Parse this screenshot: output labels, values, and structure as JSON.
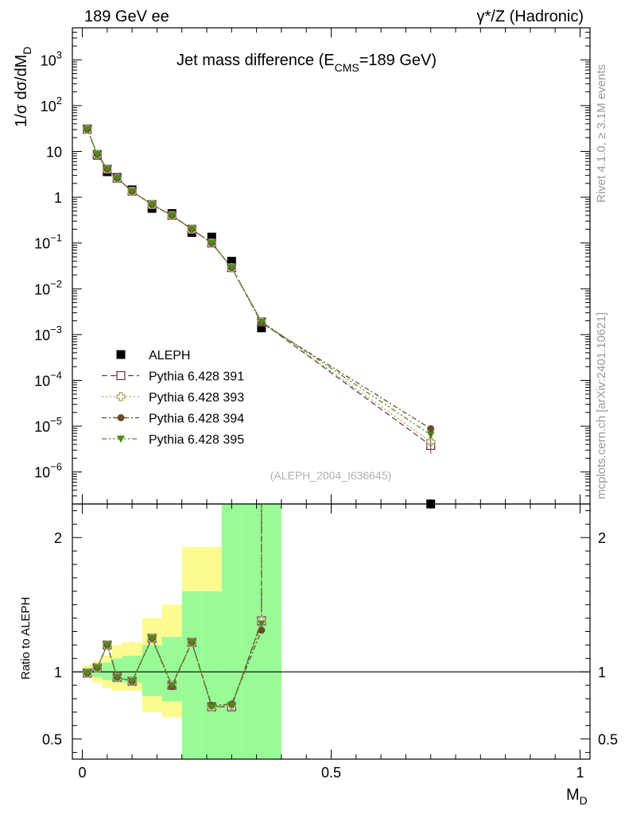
{
  "header": {
    "left": "189 GeV ee",
    "right": "γ*/Z (Hadronic)"
  },
  "side_text": {
    "rivet": "Rivet 4.1.0, ≥ 3.1M events",
    "mcplots": "mcplots.cern.ch [arXiv:2401.10621]"
  },
  "chart_data": [
    {
      "type": "scatter",
      "title": "Jet mass difference (E",
      "title_sub": "CMS",
      "title_end": "=189 GeV)",
      "ylabel": "1/σ dσ/dM",
      "ylabel_sub": "D",
      "yscale": "log",
      "ylim": [
        2e-07,
        5000
      ],
      "xlim": [
        -0.02,
        1.02
      ],
      "watermark": "(ALEPH_2004_I636645)",
      "ytick_labels": [
        {
          "v": 1000,
          "base": "10",
          "exp": "3"
        },
        {
          "v": 100,
          "base": "10",
          "exp": "2"
        },
        {
          "v": 10,
          "base": "10",
          "exp": ""
        },
        {
          "v": 1,
          "base": "1",
          "exp": ""
        },
        {
          "v": 0.1,
          "base": "10",
          "exp": "−1"
        },
        {
          "v": 0.01,
          "base": "10",
          "exp": "−2"
        },
        {
          "v": 0.001,
          "base": "10",
          "exp": "−3"
        },
        {
          "v": 0.0001,
          "base": "10",
          "exp": "−4"
        },
        {
          "v": 1e-05,
          "base": "10",
          "exp": "−5"
        },
        {
          "v": 1e-06,
          "base": "10",
          "exp": "−6"
        }
      ],
      "x": [
        0.01,
        0.03,
        0.05,
        0.07,
        0.1,
        0.14,
        0.18,
        0.22,
        0.26,
        0.3,
        0.36,
        0.7
      ],
      "series": [
        {
          "name": "ALEPH",
          "color": "#000000",
          "marker": "square-filled",
          "values": [
            31,
            8.3,
            3.6,
            2.7,
            1.45,
            0.57,
            0.44,
            0.17,
            0.135,
            0.04,
            0.0014,
            1.5e-07
          ]
        },
        {
          "name": "Pythia 6.428 391",
          "color": "#6b3a55",
          "marker": "square-open",
          "dash": "7,4",
          "values": [
            30.5,
            8.6,
            4.1,
            2.6,
            1.35,
            0.69,
            0.4,
            0.2,
            0.1,
            0.029,
            0.0019,
            3.8e-06
          ]
        },
        {
          "name": "Pythia 6.428 393",
          "color": "#a8a055",
          "marker": "cross-open",
          "dash": "2,3",
          "values": [
            30.5,
            8.6,
            4.1,
            2.6,
            1.35,
            0.69,
            0.4,
            0.2,
            0.1,
            0.029,
            0.0019,
            4.6e-06
          ]
        },
        {
          "name": "Pythia 6.428 394",
          "color": "#6b4c2a",
          "marker": "circle-filled",
          "dash": "6,3,2,3",
          "values": [
            30.5,
            8.6,
            4.1,
            2.6,
            1.35,
            0.69,
            0.4,
            0.2,
            0.1,
            0.029,
            0.0018,
            8.8e-06
          ]
        },
        {
          "name": "Pythia 6.428 395",
          "color": "#4d8a1a",
          "marker": "triangle-down-filled",
          "dash": "6,3,2,3,2,3",
          "values": [
            30.5,
            8.6,
            4.1,
            2.6,
            1.35,
            0.69,
            0.4,
            0.2,
            0.1,
            0.029,
            0.0019,
            6.5e-06
          ]
        }
      ]
    },
    {
      "type": "scatter",
      "ylabel": "Ratio to ALEPH",
      "xlabel": "M",
      "xlabel_sub": "D",
      "ylim": [
        0.35,
        2.25
      ],
      "xlim": [
        -0.02,
        1.02
      ],
      "ytick_labels": [
        "0.5",
        "1",
        "2"
      ],
      "xtick_labels": [
        "0",
        "0.5",
        "1"
      ],
      "x": [
        0.01,
        0.03,
        0.05,
        0.07,
        0.1,
        0.14,
        0.18,
        0.22,
        0.26,
        0.3,
        0.36
      ],
      "band_edges": [
        0.0,
        0.02,
        0.04,
        0.06,
        0.08,
        0.12,
        0.16,
        0.2,
        0.24,
        0.28,
        0.32,
        0.4
      ],
      "band_yellow_lo": [
        0.96,
        0.92,
        0.88,
        0.86,
        0.86,
        0.7,
        0.66,
        0.35,
        0.35,
        0.35,
        0.35
      ],
      "band_yellow_hi": [
        1.05,
        1.08,
        1.12,
        1.2,
        1.22,
        1.4,
        1.5,
        1.93,
        1.93,
        2.25,
        2.25
      ],
      "band_green_lo": [
        0.98,
        0.96,
        0.94,
        0.92,
        0.92,
        0.82,
        0.78,
        0.35,
        0.35,
        0.35,
        0.35
      ],
      "band_green_hi": [
        1.03,
        1.05,
        1.07,
        1.1,
        1.12,
        1.2,
        1.26,
        1.6,
        1.6,
        2.25,
        2.25
      ],
      "series": [
        {
          "name": "Pythia 6.428 391",
          "color": "#6b3a55",
          "marker": "square-open",
          "dash": "7,4",
          "values": [
            0.99,
            1.03,
            1.2,
            0.96,
            0.93,
            1.25,
            0.9,
            1.22,
            0.74,
            0.74,
            1.38
          ]
        },
        {
          "name": "Pythia 6.428 393",
          "color": "#a8a055",
          "marker": "cross-open",
          "dash": "2,3",
          "values": [
            0.99,
            1.03,
            1.2,
            0.96,
            0.93,
            1.25,
            0.9,
            1.22,
            0.74,
            0.75,
            1.38
          ]
        },
        {
          "name": "Pythia 6.428 394",
          "color": "#6b4c2a",
          "marker": "circle-filled",
          "dash": "6,3,2,3",
          "values": [
            0.99,
            1.03,
            1.2,
            0.96,
            0.93,
            1.25,
            0.89,
            1.22,
            0.75,
            0.76,
            1.31
          ]
        },
        {
          "name": "Pythia 6.428 395",
          "color": "#4d8a1a",
          "marker": "triangle-down-filled",
          "dash": "6,3,2,3,2,3",
          "values": [
            0.99,
            1.03,
            1.2,
            0.96,
            0.93,
            1.25,
            0.9,
            1.22,
            0.74,
            0.75,
            1.36
          ]
        }
      ]
    }
  ]
}
